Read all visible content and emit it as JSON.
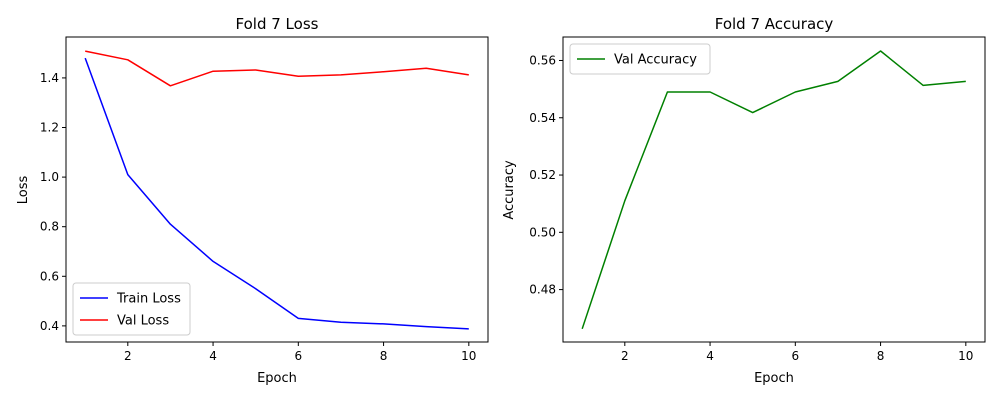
{
  "chart_data": [
    {
      "type": "line",
      "title": "Fold 7 Loss",
      "xlabel": "Epoch",
      "ylabel": "Loss",
      "xlim": [
        0.55,
        10.45
      ],
      "ylim": [
        0.335,
        1.565
      ],
      "xticks": [
        2,
        4,
        6,
        8,
        10
      ],
      "xtick_labels": [
        "2",
        "4",
        "6",
        "8",
        "10"
      ],
      "yticks": [
        0.4,
        0.6,
        0.8,
        1.0,
        1.2,
        1.4
      ],
      "ytick_labels": [
        "0.4",
        "0.6",
        "0.8",
        "1.0",
        "1.2",
        "1.4"
      ],
      "x": [
        1,
        2,
        3,
        4,
        5,
        6,
        7,
        8,
        9,
        10
      ],
      "grid": false,
      "legend": "lower-left",
      "series": [
        {
          "name": "Train Loss",
          "color": "#0000ff",
          "values": [
            1.48,
            1.01,
            0.81,
            0.66,
            0.55,
            0.43,
            0.415,
            0.408,
            0.397,
            0.388
          ]
        },
        {
          "name": "Val Loss",
          "color": "#ff0000",
          "values": [
            1.508,
            1.473,
            1.368,
            1.427,
            1.432,
            1.407,
            1.412,
            1.425,
            1.439,
            1.412
          ]
        }
      ]
    },
    {
      "type": "line",
      "title": "Fold 7 Accuracy",
      "xlabel": "Epoch",
      "ylabel": "Accuracy",
      "xlim": [
        0.55,
        10.45
      ],
      "ylim": [
        0.4617,
        0.5682
      ],
      "xticks": [
        2,
        4,
        6,
        8,
        10
      ],
      "xtick_labels": [
        "2",
        "4",
        "6",
        "8",
        "10"
      ],
      "yticks": [
        0.48,
        0.5,
        0.52,
        0.54,
        0.56
      ],
      "ytick_labels": [
        "0.48",
        "0.50",
        "0.52",
        "0.54",
        "0.56"
      ],
      "x": [
        1,
        2,
        3,
        4,
        5,
        6,
        7,
        8,
        9,
        10
      ],
      "grid": false,
      "legend": "top-left",
      "series": [
        {
          "name": "Val Accuracy",
          "color": "#008000",
          "values": [
            0.4663,
            0.511,
            0.549,
            0.549,
            0.5418,
            0.549,
            0.5527,
            0.5633,
            0.5513,
            0.5527
          ]
        }
      ]
    }
  ]
}
